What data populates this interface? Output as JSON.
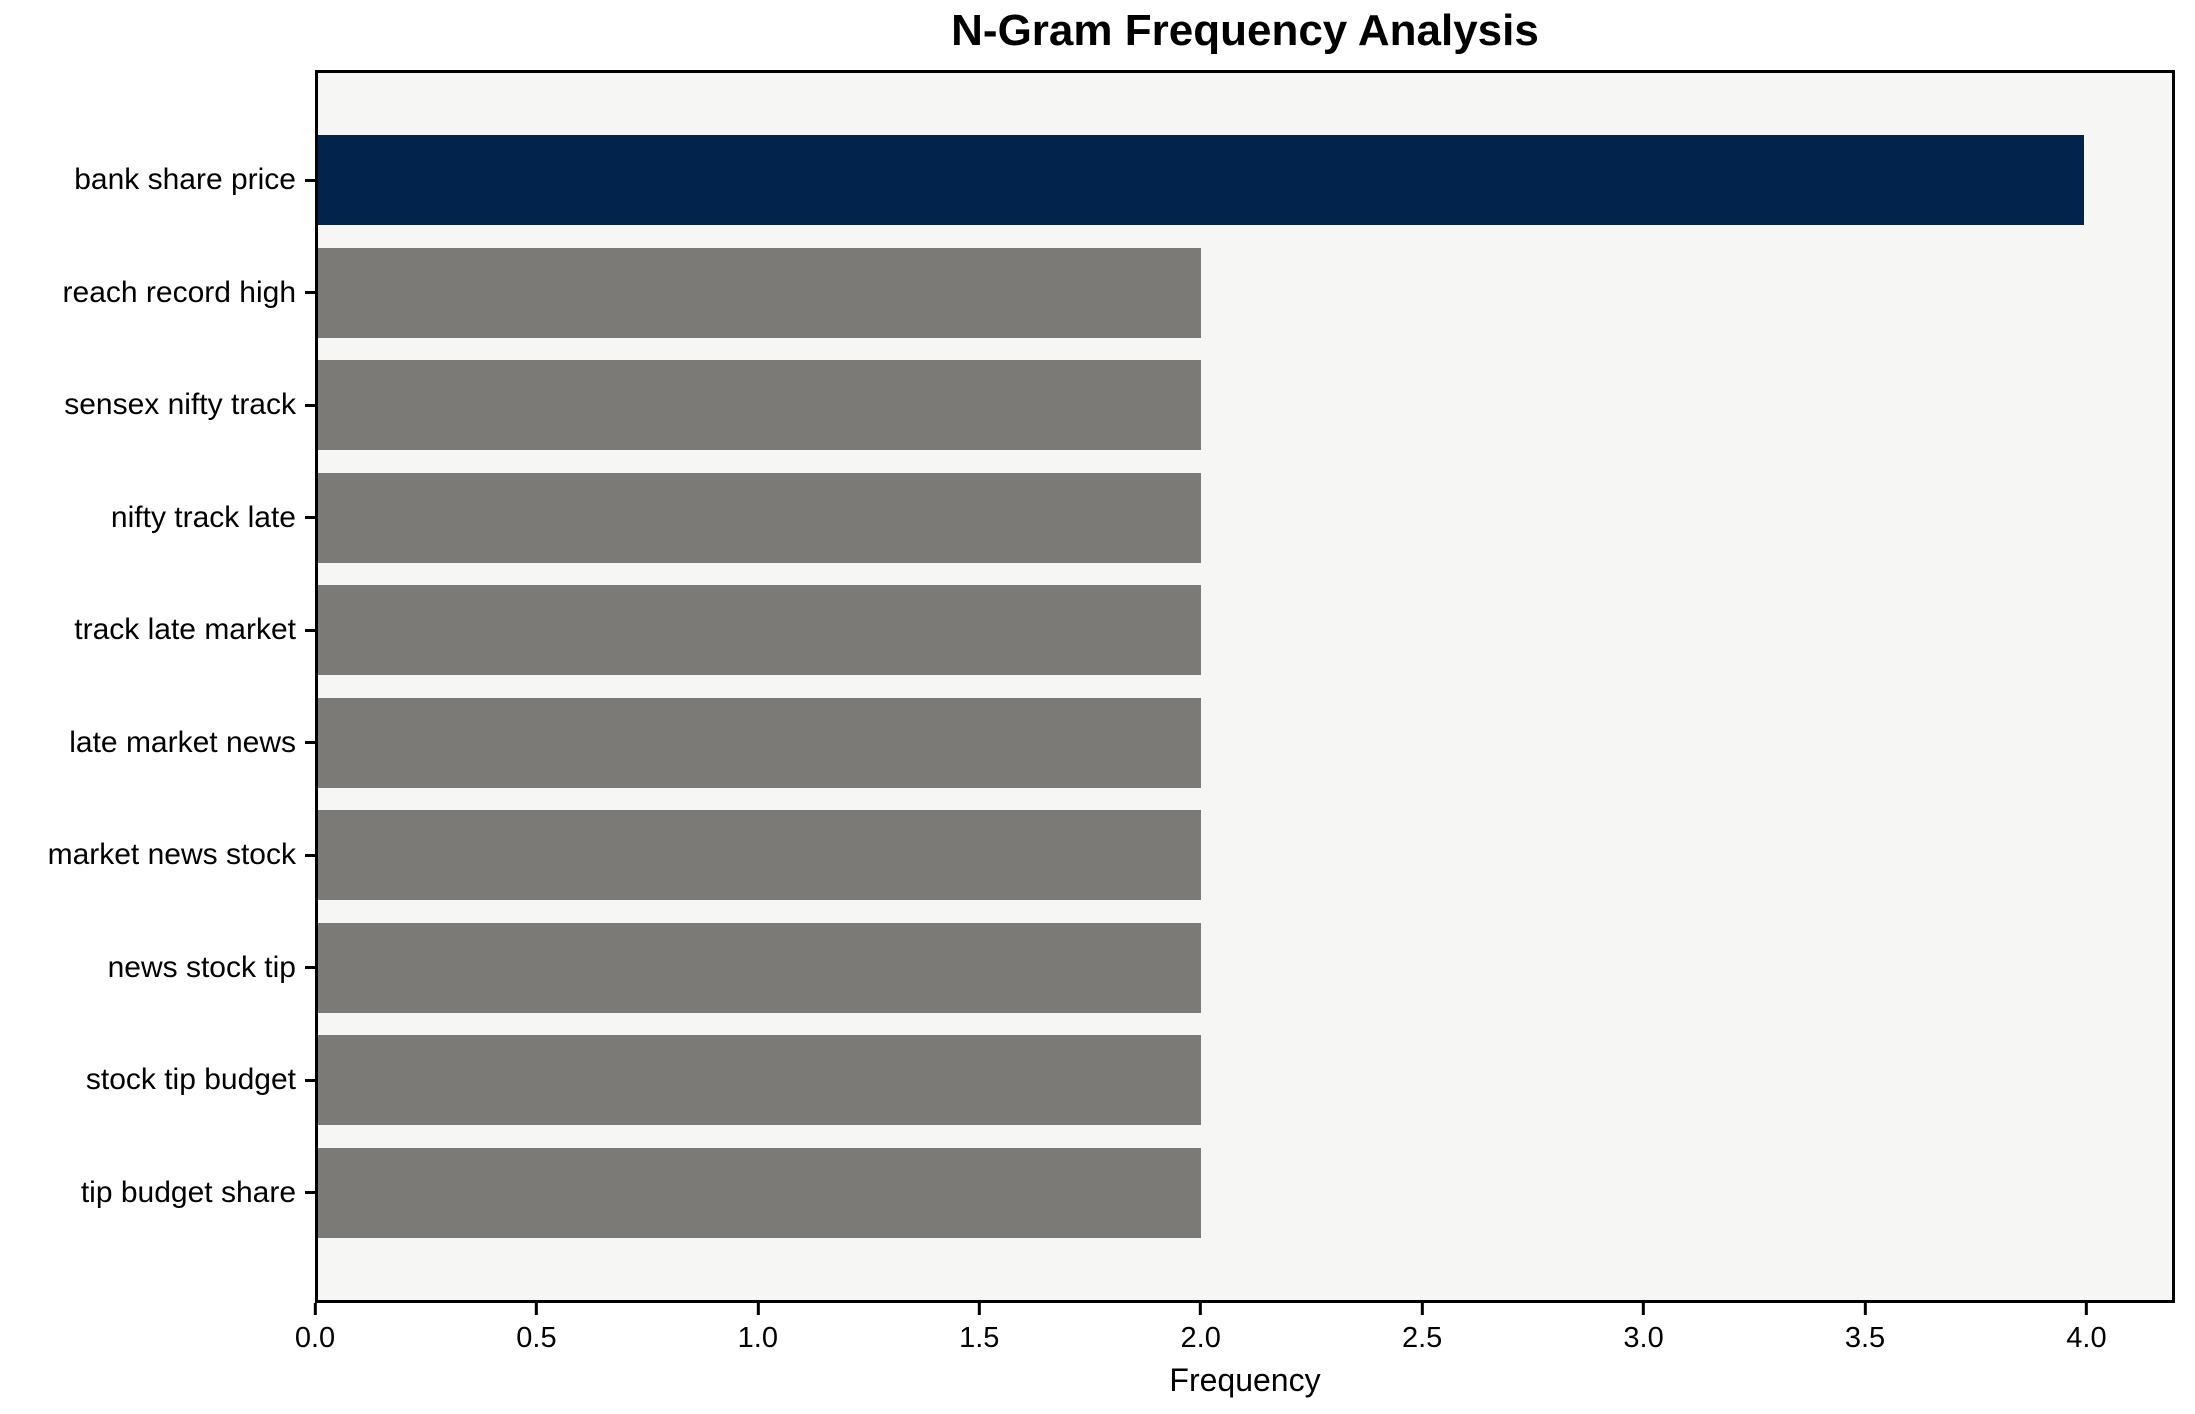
{
  "figure": {
    "background": "#FFFFFF",
    "plot_background": "#F6F6F4",
    "spine_color": "#000000"
  },
  "chart_data": {
    "type": "bar",
    "orientation": "horizontal",
    "title": "N-Gram Frequency Analysis",
    "xlabel": "Frequency",
    "ylabel": "",
    "categories": [
      "bank share price",
      "reach record high",
      "sensex nifty track",
      "nifty track late",
      "track late market",
      "late market news",
      "market news stock",
      "news stock tip",
      "stock tip budget",
      "tip budget share"
    ],
    "values": [
      4,
      2,
      2,
      2,
      2,
      2,
      2,
      2,
      2,
      2
    ],
    "bar_colors": [
      "#02234C",
      "#7B7A77",
      "#7B7A77",
      "#7B7A77",
      "#7B7A77",
      "#7B7A77",
      "#7B7A77",
      "#7B7A77",
      "#7B7A77",
      "#7B7A77"
    ],
    "colors": {
      "highlight": "#02234C",
      "default": "#7B7A77"
    },
    "xlim": [
      0,
      4.2
    ],
    "xticks": [
      "0.0",
      "0.5",
      "1.0",
      "1.5",
      "2.0",
      "2.5",
      "3.0",
      "3.5",
      "4.0"
    ],
    "xtick_values": [
      0,
      0.5,
      1,
      1.5,
      2,
      2.5,
      3,
      3.5,
      4
    ],
    "bar_height_fraction": 0.8,
    "grid": false,
    "legend": null
  }
}
